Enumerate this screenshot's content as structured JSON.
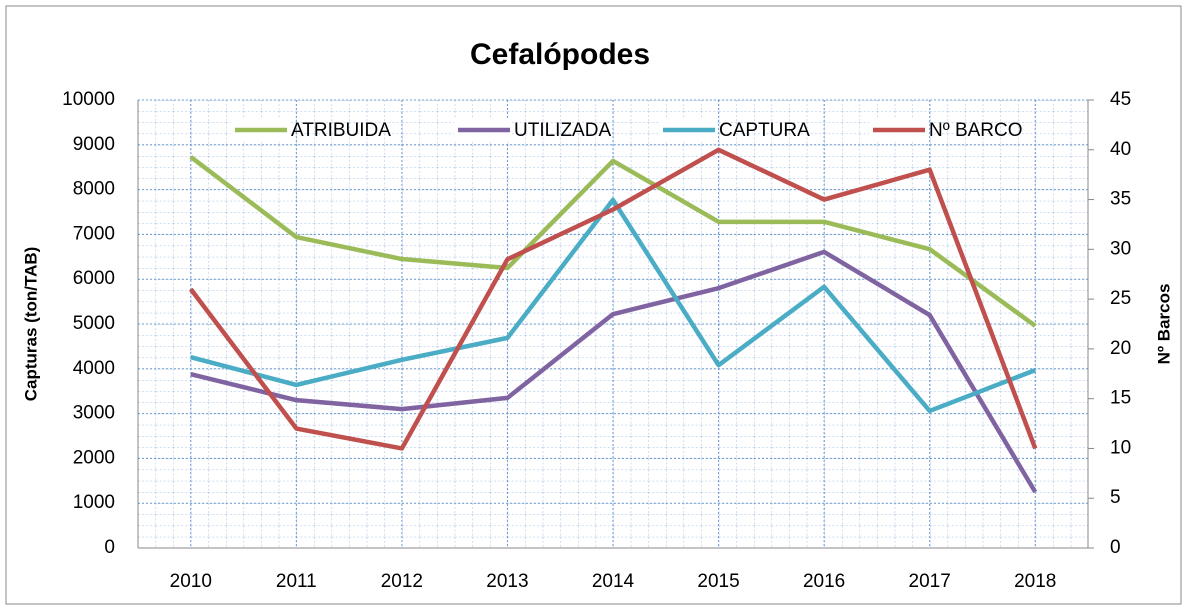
{
  "chart_data": {
    "type": "line",
    "title": "Cefalópodes",
    "y_label": "Capturas (ton/TAB)",
    "y2_label": "Nº Barcos",
    "categories": [
      "2010",
      "2011",
      "2012",
      "2013",
      "2014",
      "2015",
      "2016",
      "2017",
      "2018"
    ],
    "series": [
      {
        "name": "ATRIBUIDA",
        "color": "#9bbb59",
        "values": [
          8730,
          6940,
          6450,
          6250,
          8640,
          7280,
          7280,
          6670,
          4960
        ]
      },
      {
        "name": "UTILIZADA",
        "color": "#8064a2",
        "values": [
          3880,
          3300,
          3100,
          3350,
          5220,
          5800,
          6610,
          5200,
          1250
        ]
      },
      {
        "name": "CAPTURA",
        "color": "#4bacc6",
        "values": [
          4260,
          3640,
          4200,
          4690,
          7770,
          4080,
          5830,
          3060,
          3970
        ]
      },
      {
        "name": "Nº BARCO",
        "color": "#c0504d",
        "axis": "y2",
        "values": [
          26,
          12,
          10,
          29,
          34,
          40,
          35,
          38,
          10
        ]
      }
    ],
    "ylim": [
      0,
      10000
    ],
    "yticks": [
      0,
      1000,
      2000,
      3000,
      4000,
      5000,
      6000,
      7000,
      8000,
      9000,
      10000
    ],
    "y2lim": [
      0,
      45
    ],
    "y2ticks": [
      0,
      5,
      10,
      15,
      20,
      25,
      30,
      35,
      40,
      45
    ],
    "grid": true,
    "legend": "top"
  }
}
